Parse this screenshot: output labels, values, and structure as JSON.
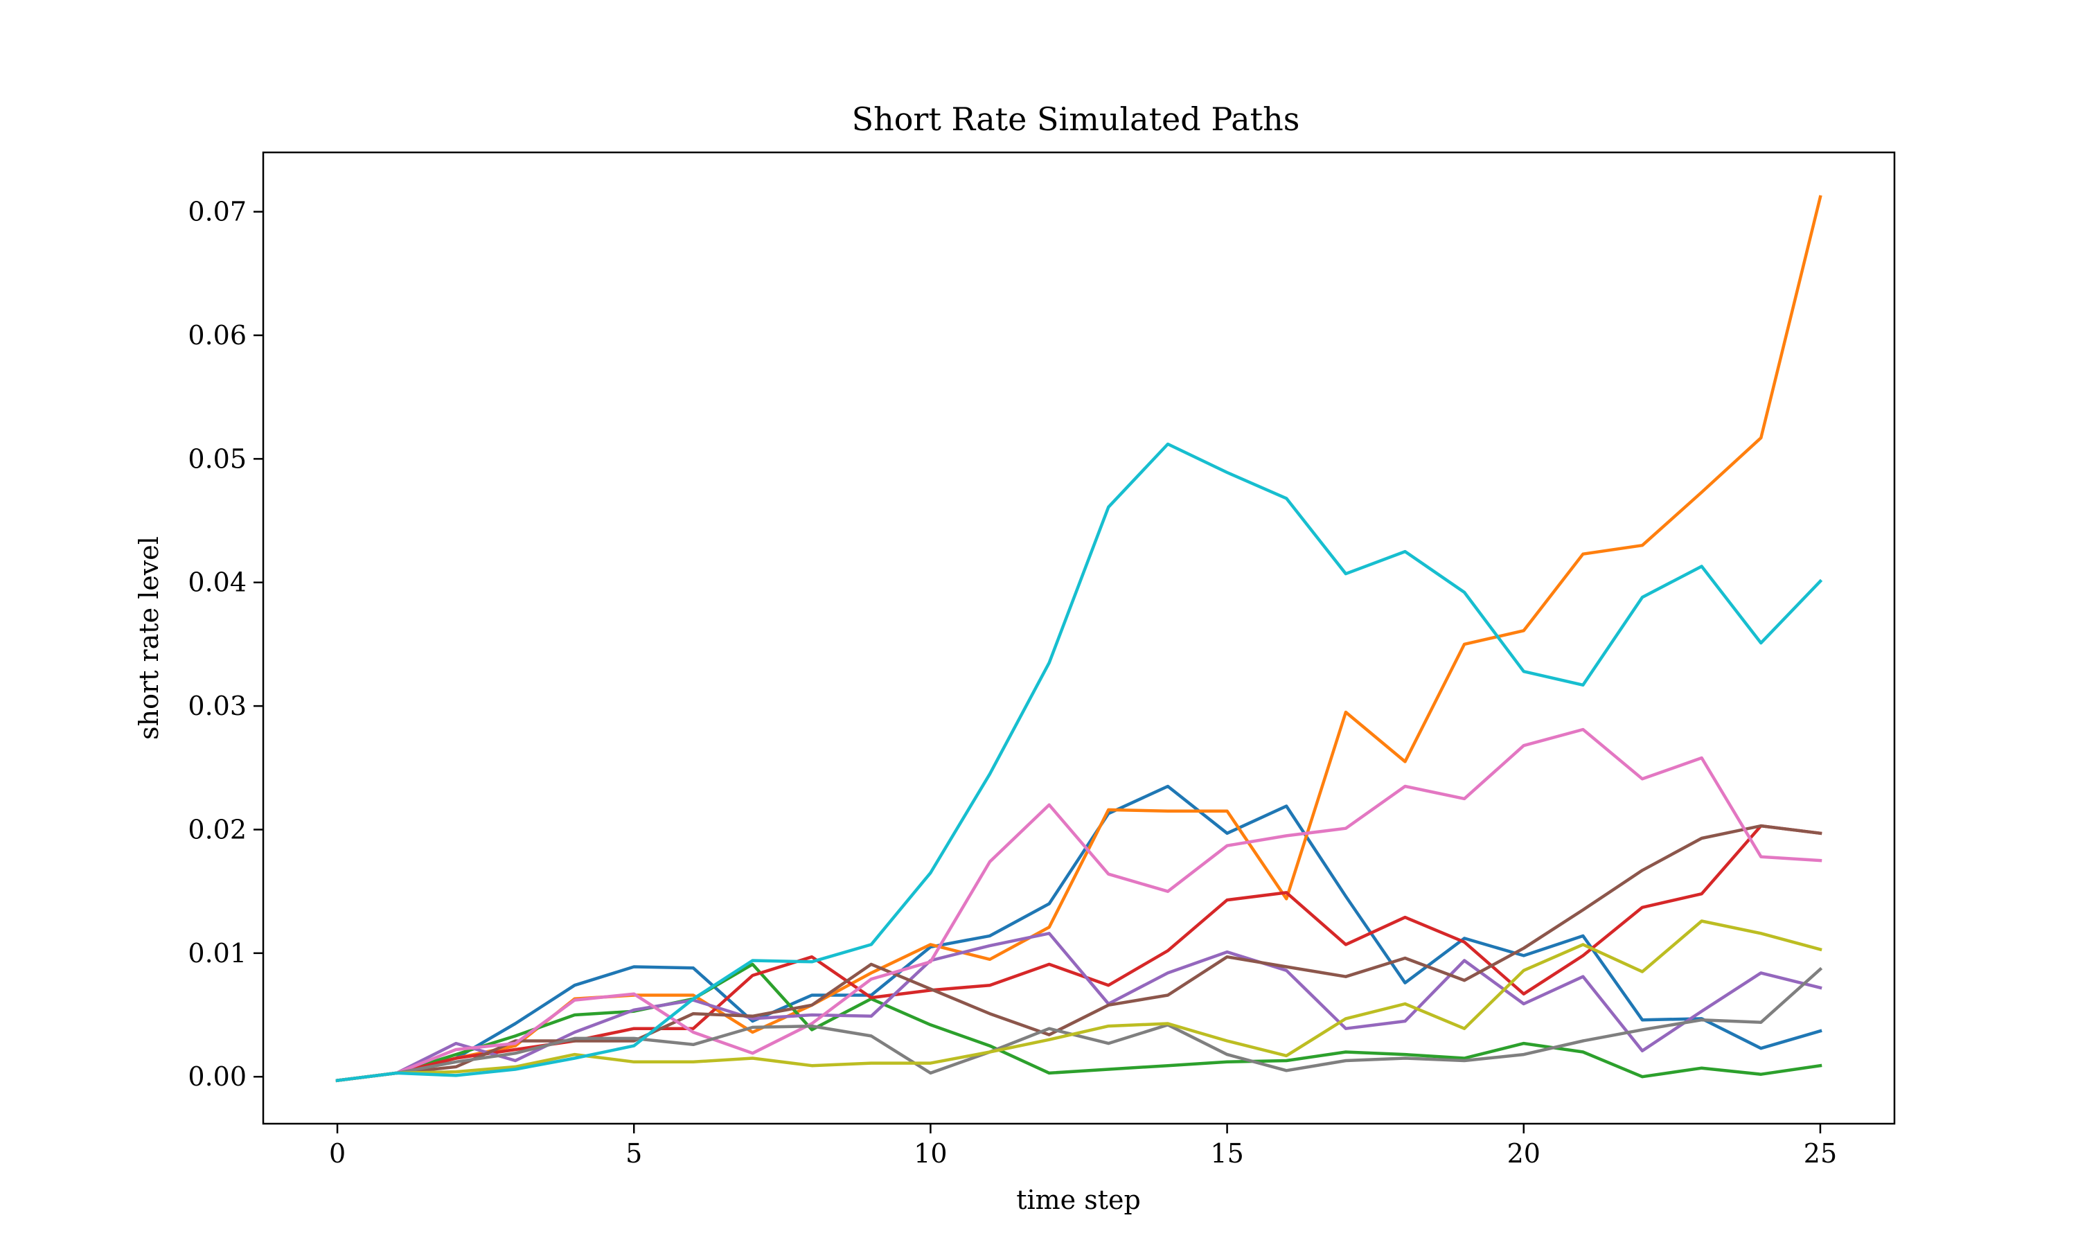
{
  "chart_data": {
    "type": "line",
    "title": "Short Rate Simulated Paths",
    "xlabel": "time step",
    "ylabel": "short rate level",
    "xlim": [
      -1.25,
      26.25
    ],
    "ylim": [
      -0.0038,
      0.0748
    ],
    "xticks": [
      "0",
      "5",
      "10",
      "15",
      "20",
      "25"
    ],
    "yticks": [
      "0.00",
      "0.01",
      "0.02",
      "0.03",
      "0.04",
      "0.05",
      "0.06",
      "0.07"
    ],
    "grid": false,
    "legend": "none",
    "x": [
      0,
      1,
      2,
      3,
      4,
      5,
      6,
      7,
      8,
      9,
      10,
      11,
      12,
      13,
      14,
      15,
      16,
      17,
      18,
      19,
      20,
      21,
      22,
      23,
      24,
      25
    ],
    "series": [
      {
        "color": "#1f77b4",
        "values": [
          -0.0003,
          0.0003,
          0.0015,
          0.0043,
          0.0074,
          0.0089,
          0.0088,
          0.0045,
          0.0066,
          0.0066,
          0.0105,
          0.0114,
          0.014,
          0.0213,
          0.0235,
          0.0197,
          0.0219,
          0.0146,
          0.0076,
          0.0112,
          0.0098,
          0.0114,
          0.0046,
          0.0047,
          0.0023,
          0.0037
        ]
      },
      {
        "color": "#ff7f0e",
        "values": [
          -0.0003,
          0.0003,
          0.0015,
          0.0025,
          0.0063,
          0.0066,
          0.0066,
          0.0036,
          0.0058,
          0.0084,
          0.0107,
          0.0095,
          0.0121,
          0.0216,
          0.0215,
          0.0215,
          0.0144,
          0.0295,
          0.0255,
          0.035,
          0.0361,
          0.0423,
          0.043,
          0.0473,
          0.0517,
          0.0712
        ]
      },
      {
        "color": "#2ca02c",
        "values": [
          -0.0003,
          0.0003,
          0.0018,
          0.0033,
          0.005,
          0.0053,
          0.0063,
          0.0091,
          0.0038,
          0.0063,
          0.0042,
          0.0025,
          0.0003,
          0.0006,
          0.0009,
          0.0012,
          0.0013,
          0.002,
          0.0018,
          0.0015,
          0.0027,
          0.002,
          0.0,
          0.0007,
          0.0002,
          0.0009
        ]
      },
      {
        "color": "#d62728",
        "values": [
          -0.0003,
          0.0003,
          0.0015,
          0.0022,
          0.0029,
          0.0039,
          0.0039,
          0.0082,
          0.0097,
          0.0064,
          0.007,
          0.0074,
          0.0091,
          0.0074,
          0.0102,
          0.0143,
          0.0149,
          0.0107,
          0.0129,
          0.0109,
          0.0067,
          0.0098,
          0.0137,
          0.0148,
          0.0203,
          0.0197
        ]
      },
      {
        "color": "#9467bd",
        "values": [
          -0.0003,
          0.0003,
          0.0027,
          0.0013,
          0.0036,
          0.0054,
          0.0062,
          0.0047,
          0.005,
          0.0049,
          0.0094,
          0.0106,
          0.0116,
          0.0059,
          0.0084,
          0.0101,
          0.0086,
          0.0039,
          0.0045,
          0.0094,
          0.0059,
          0.0081,
          0.0021,
          0.0053,
          0.0084,
          0.0072
        ]
      },
      {
        "color": "#8c564b",
        "values": [
          -0.0003,
          0.0003,
          0.0008,
          0.0029,
          0.0029,
          0.0029,
          0.0051,
          0.0049,
          0.0058,
          0.0091,
          0.0071,
          0.0051,
          0.0034,
          0.0058,
          0.0066,
          0.0097,
          0.0089,
          0.0081,
          0.0096,
          0.0078,
          0.0104,
          0.0135,
          0.0167,
          0.0193,
          0.0203,
          0.0197
        ]
      },
      {
        "color": "#e377c2",
        "values": [
          -0.0003,
          0.0003,
          0.0022,
          0.0027,
          0.0062,
          0.0067,
          0.0036,
          0.0019,
          0.0043,
          0.0079,
          0.0093,
          0.0174,
          0.022,
          0.0164,
          0.015,
          0.0187,
          0.0195,
          0.0201,
          0.0235,
          0.0225,
          0.0268,
          0.0281,
          0.0241,
          0.0258,
          0.0178,
          0.0175
        ]
      },
      {
        "color": "#7f7f7f",
        "values": [
          -0.0003,
          0.0003,
          0.0012,
          0.0019,
          0.0031,
          0.0031,
          0.0026,
          0.004,
          0.0041,
          0.0033,
          0.0003,
          0.002,
          0.0039,
          0.0027,
          0.0042,
          0.0018,
          0.0005,
          0.0013,
          0.0015,
          0.0013,
          0.0018,
          0.0029,
          0.0038,
          0.0046,
          0.0044,
          0.0087
        ]
      },
      {
        "color": "#bcbd22",
        "values": [
          -0.0003,
          0.0003,
          0.0004,
          0.0008,
          0.0018,
          0.0012,
          0.0012,
          0.0015,
          0.0009,
          0.0011,
          0.0011,
          0.002,
          0.003,
          0.0041,
          0.0043,
          0.0029,
          0.0017,
          0.0047,
          0.0059,
          0.0039,
          0.0086,
          0.0107,
          0.0085,
          0.0126,
          0.0116,
          0.0103
        ]
      },
      {
        "color": "#17becf",
        "values": [
          -0.0003,
          0.0003,
          0.0001,
          0.0006,
          0.0015,
          0.0025,
          0.0063,
          0.0094,
          0.0093,
          0.0107,
          0.0165,
          0.0245,
          0.0335,
          0.0461,
          0.0512,
          0.0489,
          0.0468,
          0.0407,
          0.0425,
          0.0392,
          0.0328,
          0.0317,
          0.0388,
          0.0413,
          0.0351,
          0.0401
        ]
      }
    ]
  }
}
